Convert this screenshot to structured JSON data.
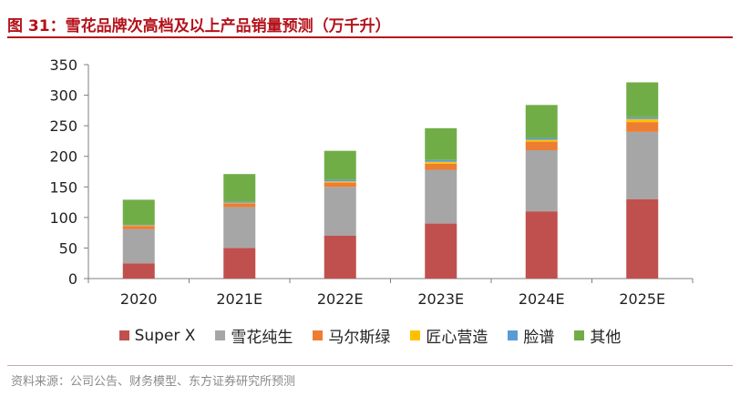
{
  "title": "图 31：雪花品牌次高档及以上产品销量预测（万千升）",
  "source": "资料来源：公司公告、财务模型、东方证券研究所预测",
  "chart_data": {
    "type": "bar",
    "stacked": true,
    "title": "图 31：雪花品牌次高档及以上产品销量预测（万千升）",
    "xlabel": "",
    "ylabel": "",
    "ylim": [
      0,
      350
    ],
    "yticks": [
      "0",
      "50",
      "100",
      "150",
      "200",
      "250",
      "300",
      "350"
    ],
    "categories": [
      "2020",
      "2021E",
      "2022E",
      "2023E",
      "2024E",
      "2025E"
    ],
    "legend_position": "bottom",
    "series": [
      {
        "name": "Super X",
        "color": "#c0504d",
        "values": [
          25,
          50,
          70,
          90,
          110,
          130
        ]
      },
      {
        "name": "雪花纯生",
        "color": "#a6a6a6",
        "values": [
          56,
          67,
          80,
          88,
          100,
          110
        ]
      },
      {
        "name": "马尔斯绿",
        "color": "#ed7d31",
        "values": [
          5,
          6,
          7,
          10,
          14,
          16
        ]
      },
      {
        "name": "匠心营造",
        "color": "#ffc000",
        "values": [
          1,
          1,
          2,
          3,
          3,
          5
        ]
      },
      {
        "name": "脸谱",
        "color": "#5b9bd5",
        "values": [
          1,
          2,
          3,
          3,
          3,
          3
        ]
      },
      {
        "name": "其他",
        "color": "#70ad47",
        "values": [
          41,
          45,
          47,
          52,
          54,
          57
        ]
      }
    ]
  }
}
